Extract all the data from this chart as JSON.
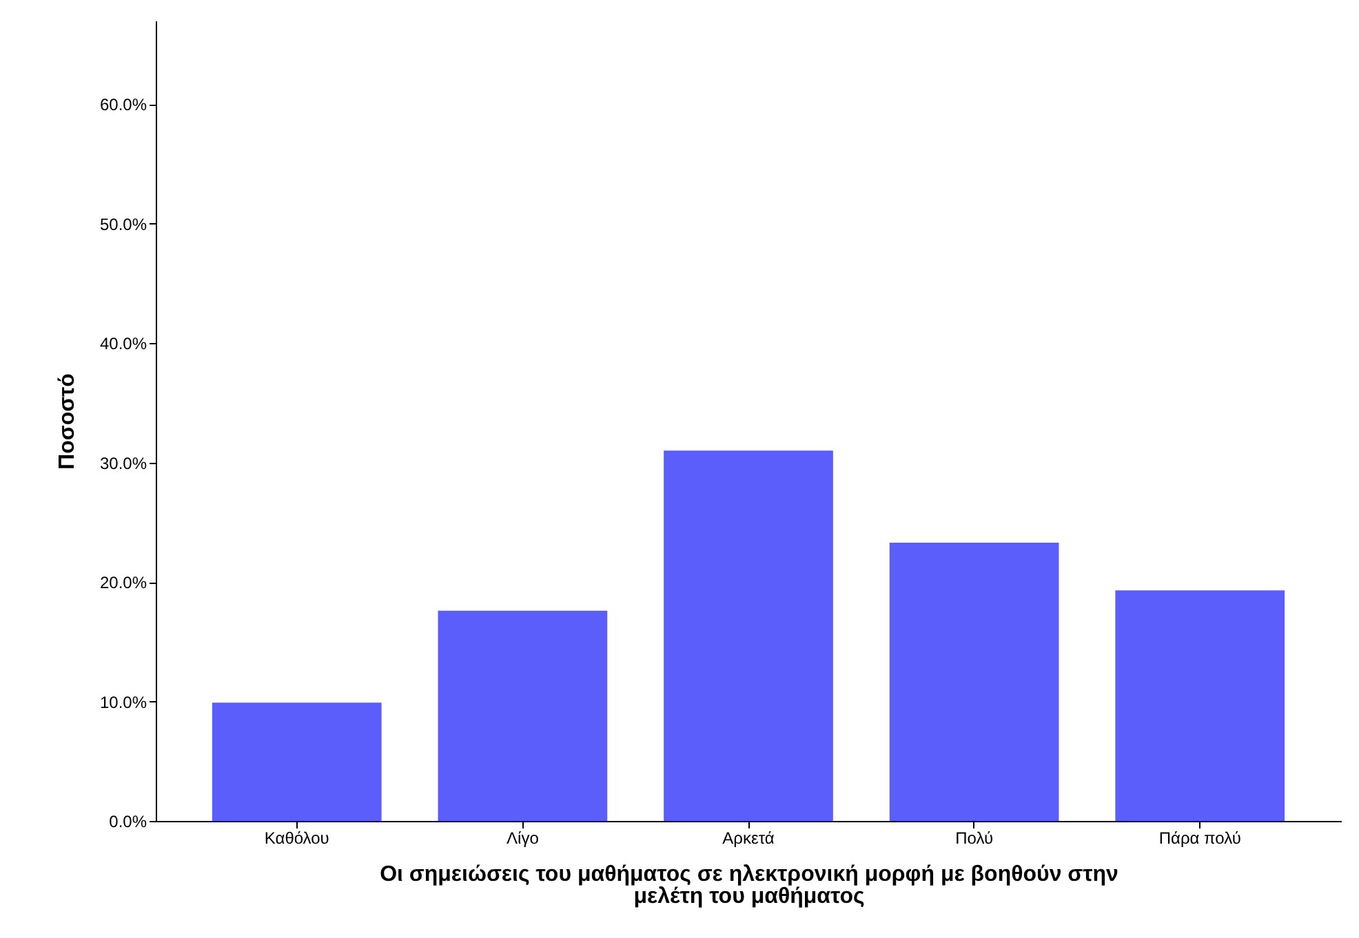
{
  "chart_data": {
    "type": "bar",
    "xlabel": "Οι  σημειώσεις του μαθήματος σε ηλεκτρονική μορφή με βοηθούν στην μελέτη του μαθήματος",
    "ylabel": "Ποσοστό",
    "categories": [
      "Καθόλου",
      "Λίγο",
      "Αρκετά",
      "Πολύ",
      "Πάρα πολύ"
    ],
    "values": [
      9.9,
      17.6,
      31.0,
      23.3,
      19.3
    ],
    "color": "#5b5efb",
    "ylim": [
      0,
      67
    ],
    "yticks": [
      {
        "value": 0,
        "label": "0.0%"
      },
      {
        "value": 10,
        "label": "10.0%"
      },
      {
        "value": 20,
        "label": "20.0%"
      },
      {
        "value": 30,
        "label": "30.0%"
      },
      {
        "value": 40,
        "label": "40.0%"
      },
      {
        "value": 50,
        "label": "50.0%"
      },
      {
        "value": 60,
        "label": "60.0%"
      }
    ],
    "grid": false
  }
}
